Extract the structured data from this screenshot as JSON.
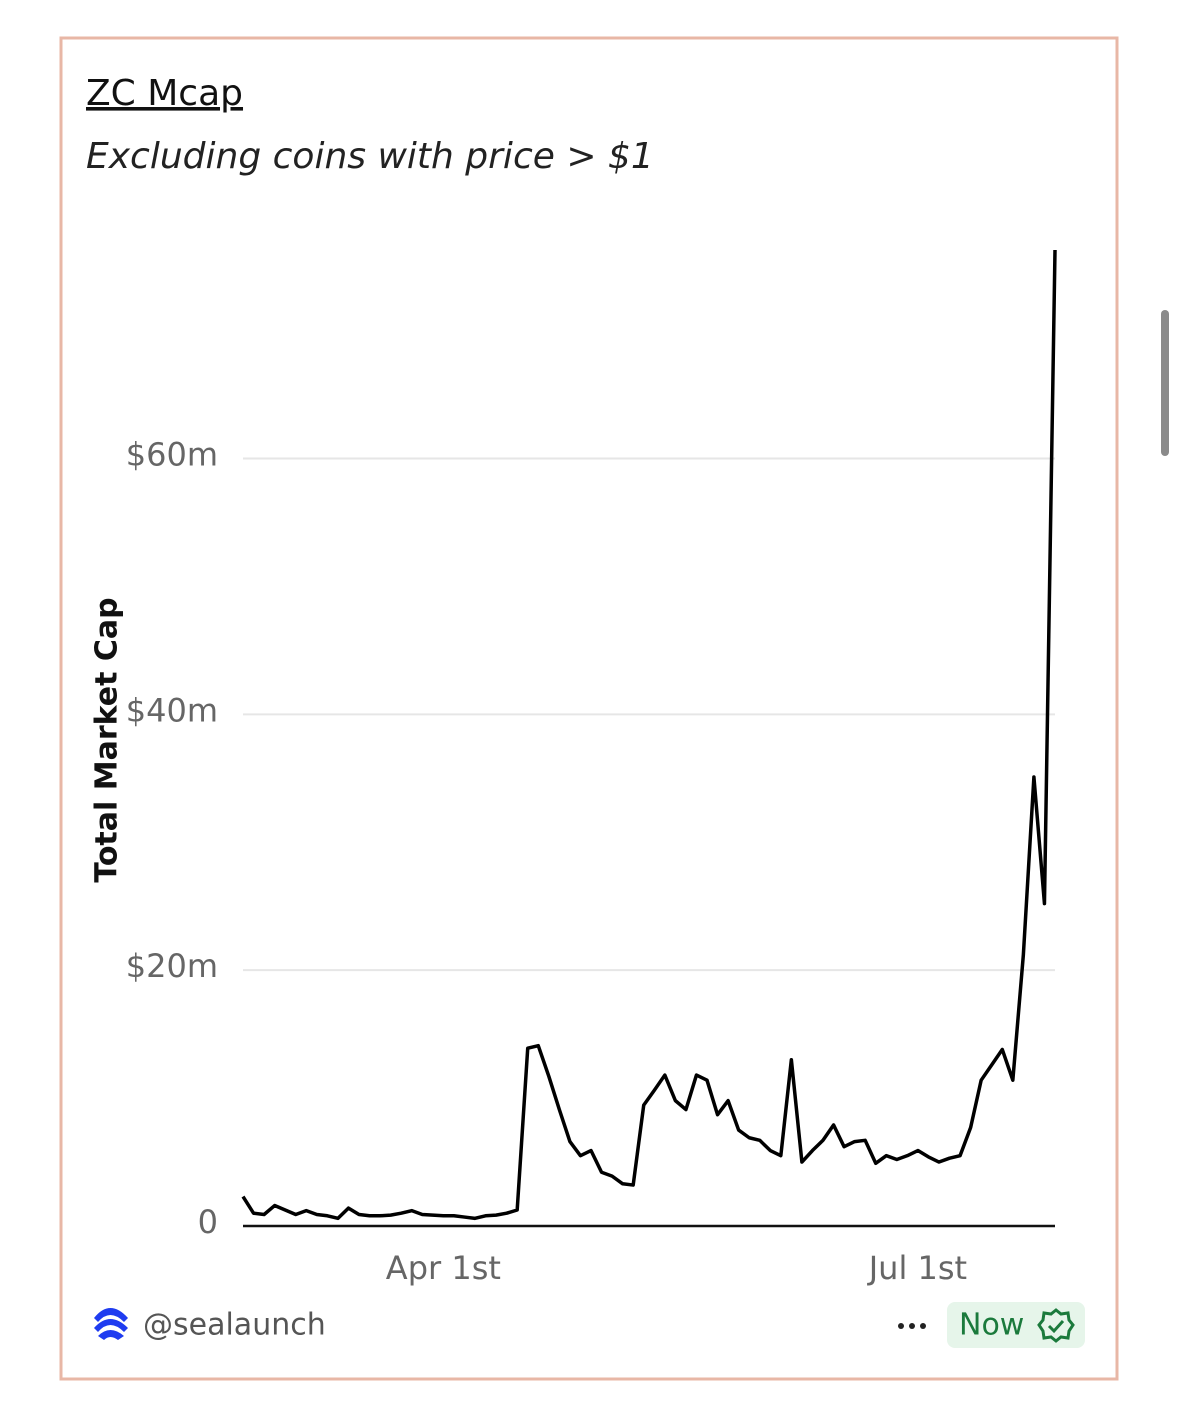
{
  "chart_data": {
    "type": "line",
    "title": "ZC Mcap",
    "subtitle": "Excluding coins with price > $1",
    "y_label": "Total Market Cap",
    "categories": [
      null,
      null,
      null,
      null,
      null,
      null,
      null,
      null,
      null,
      null,
      null,
      null,
      null,
      null,
      null,
      null,
      null,
      null,
      null,
      "Apr 1st",
      null,
      null,
      null,
      null,
      null,
      null,
      null,
      null,
      null,
      null,
      null,
      null,
      null,
      null,
      null,
      null,
      null,
      null,
      null,
      null,
      null,
      null,
      null,
      null,
      null,
      null,
      null,
      null,
      null,
      null,
      null,
      null,
      null,
      null,
      null,
      null,
      null,
      null,
      null,
      null,
      null,
      null,
      null,
      null,
      "Jul 1st",
      null,
      null,
      null,
      null,
      null,
      null,
      null,
      null,
      null,
      null,
      null,
      null,
      null
    ],
    "series": [
      {
        "name": "Total Market Cap",
        "color": "#000000",
        "values": [
          2.3,
          1.0,
          0.9,
          1.6,
          1.25,
          0.9,
          1.2,
          0.9,
          0.8,
          0.6,
          1.4,
          0.9,
          0.8,
          0.8,
          0.85,
          1.0,
          1.2,
          0.9,
          0.85,
          0.8,
          0.8,
          0.7,
          0.6,
          0.8,
          0.85,
          1.0,
          1.25,
          13.9,
          14.1,
          11.7,
          9.1,
          6.6,
          5.5,
          5.9,
          4.2,
          3.9,
          3.3,
          3.2,
          9.45,
          10.6,
          11.8,
          9.8,
          9.1,
          11.8,
          11.4,
          8.7,
          9.8,
          7.5,
          6.9,
          6.7,
          5.9,
          5.5,
          13.0,
          5.0,
          5.9,
          6.7,
          7.9,
          6.2,
          6.6,
          6.7,
          4.9,
          5.5,
          5.2,
          5.5,
          5.9,
          5.4,
          5.0,
          5.3,
          5.5,
          7.7,
          11.4,
          12.6,
          13.8,
          11.4,
          21.2,
          35.1,
          25.2,
          76.3
        ]
      }
    ],
    "ylim": [
      0,
      76.3
    ],
    "yticks": [
      0,
      {
        "value": 20,
        "label": "$20m"
      },
      {
        "value": 40,
        "label": "$40m"
      },
      {
        "value": 60,
        "label": "$60m"
      }
    ],
    "grid": true
  },
  "footer": {
    "handle": "@sealaunch",
    "status": "Now"
  }
}
